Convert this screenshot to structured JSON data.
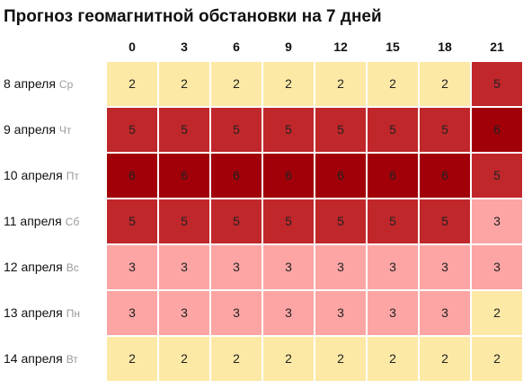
{
  "chart_data": {
    "type": "heatmap",
    "title": "Прогноз геомагнитной обстановки на 7 дней",
    "columns": [
      "0",
      "3",
      "6",
      "9",
      "12",
      "15",
      "18",
      "21"
    ],
    "rows": [
      {
        "date": "8 апреля",
        "day": "Ср",
        "values": [
          2,
          2,
          2,
          2,
          2,
          2,
          2,
          5
        ]
      },
      {
        "date": "9 апреля",
        "day": "Чт",
        "values": [
          5,
          5,
          5,
          5,
          5,
          5,
          5,
          6
        ]
      },
      {
        "date": "10 апреля",
        "day": "Пт",
        "values": [
          6,
          6,
          6,
          6,
          6,
          6,
          6,
          5
        ]
      },
      {
        "date": "11 апреля",
        "day": "Сб",
        "values": [
          5,
          5,
          5,
          5,
          5,
          5,
          5,
          3
        ]
      },
      {
        "date": "12 апреля",
        "day": "Вс",
        "values": [
          3,
          3,
          3,
          3,
          3,
          3,
          3,
          3
        ]
      },
      {
        "date": "13 апреля",
        "day": "Пн",
        "values": [
          3,
          3,
          3,
          3,
          3,
          3,
          3,
          2
        ]
      },
      {
        "date": "14 апреля",
        "day": "Вт",
        "values": [
          2,
          2,
          2,
          2,
          2,
          2,
          2,
          2
        ]
      }
    ],
    "colors": {
      "2": "#fde9a6",
      "3": "#fca5a4",
      "5": "#c0272b",
      "6": "#a10008"
    }
  }
}
